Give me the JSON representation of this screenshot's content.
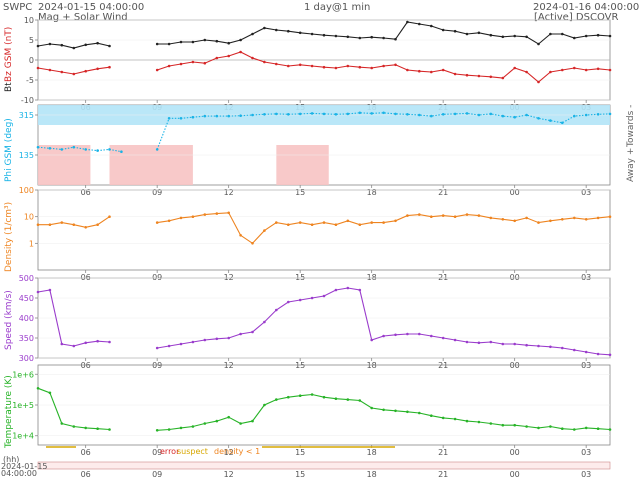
{
  "header": {
    "org": "SWPC",
    "subtitle": "Mag + Solar Wind",
    "start_time": "2024-01-15 04:00:00",
    "center_label": "1 day@1 min",
    "end_time": "2024-01-16 04:00:00",
    "source": "[Active] DSCOVR"
  },
  "legend_flags": {
    "error": "error",
    "suspect": "suspect",
    "density": "density < 1"
  },
  "bottom_axis": {
    "hh_label": "(hh)",
    "start_date": "2024-01-15",
    "start_clock": "04:00:00",
    "hour_ticks": [
      "06",
      "09",
      "12",
      "15",
      "18",
      "21",
      "00",
      "03"
    ]
  },
  "colors": {
    "bt": "#222222",
    "bz": "#d62728",
    "phi": "#19b3e6",
    "phi_towards": "#b3e4f7",
    "phi_away": "#f7c3c3",
    "density": "#ee8420",
    "speed": "#9a3ccc",
    "temperature": "#27b327",
    "flag_bar": "#d7a700",
    "axis": "#888888"
  },
  "chart_data": [
    {
      "type": "line",
      "name": "Magnetic field",
      "ylabels": [
        "Bt",
        "Bz GSM (nT)"
      ],
      "ylim": [
        -10,
        10
      ],
      "yticks": [
        -10,
        -5,
        0,
        5,
        10
      ],
      "xlim": [
        0,
        24
      ],
      "series": [
        {
          "name": "Bt",
          "x": [
            0,
            0.5,
            1,
            1.5,
            2,
            2.5,
            3,
            3.5,
            4,
            4.5,
            5,
            5.5,
            6,
            6.5,
            7,
            7.5,
            8,
            8.5,
            9,
            9.5,
            10,
            10.5,
            11,
            11.5,
            12,
            12.5,
            13,
            13.5,
            14,
            14.5,
            15,
            15.5,
            16,
            16.5,
            17,
            17.5,
            18,
            18.5,
            19,
            19.5,
            20,
            20.5,
            21,
            21.5,
            22,
            22.5,
            23,
            23.5,
            24
          ],
          "y": [
            3.5,
            4,
            3.7,
            3,
            3.8,
            4.2,
            3.5,
            null,
            null,
            null,
            4,
            4,
            4.5,
            4.5,
            5,
            4.7,
            4.2,
            5,
            6.5,
            8,
            7.5,
            7.2,
            6.8,
            6.5,
            6.2,
            6,
            5.8,
            5.5,
            5.7,
            5.5,
            5.2,
            9.5,
            9.0,
            8.5,
            7.5,
            7.2,
            6.5,
            6.8,
            6.2,
            5.8,
            6.0,
            5.8,
            4.0,
            6.5,
            6.5,
            5.5,
            6.0,
            6.2,
            6.0
          ]
        },
        {
          "name": "Bz",
          "x": [
            0,
            0.5,
            1,
            1.5,
            2,
            2.5,
            3,
            3.5,
            4,
            4.5,
            5,
            5.5,
            6,
            6.5,
            7,
            7.5,
            8,
            8.5,
            9,
            9.5,
            10,
            10.5,
            11,
            11.5,
            12,
            12.5,
            13,
            13.5,
            14,
            14.5,
            15,
            15.5,
            16,
            16.5,
            17,
            17.5,
            18,
            18.5,
            19,
            19.5,
            20,
            20.5,
            21,
            21.5,
            22,
            22.5,
            23,
            23.5,
            24
          ],
          "y": [
            -2,
            -2.5,
            -3,
            -3.5,
            -2.8,
            -2.2,
            -1.8,
            null,
            null,
            null,
            -2.5,
            -1.5,
            -1,
            -0.5,
            -0.8,
            0.5,
            1,
            2,
            0.5,
            -0.5,
            -1,
            -1.5,
            -1.2,
            -1.5,
            -1.8,
            -2,
            -1.5,
            -1.8,
            -2,
            -1.5,
            -1.2,
            -2.5,
            -2.8,
            -3,
            -2.5,
            -3.5,
            -3.8,
            -4,
            -4.2,
            -4.5,
            -2,
            -3,
            -5.5,
            -3,
            -2.5,
            -2,
            -2.5,
            -2.2,
            -2.5
          ]
        }
      ]
    },
    {
      "type": "scatter",
      "name": "Phi",
      "ylabel": "Phi GSM (deg)",
      "ylim": [
        0,
        360
      ],
      "yticks": [
        135,
        315
      ],
      "side_labels": [
        "Away +",
        "Towards -"
      ],
      "xlim": [
        0,
        24
      ],
      "series": [
        {
          "name": "Phi",
          "x": [
            0,
            0.5,
            1,
            1.5,
            2,
            2.5,
            3,
            3.5,
            4,
            4.5,
            5,
            5.5,
            6,
            6.5,
            7,
            7.5,
            8,
            8.5,
            9,
            9.5,
            10,
            10.5,
            11,
            11.5,
            12,
            12.5,
            13,
            13.5,
            14,
            14.5,
            15,
            15.5,
            16,
            16.5,
            17,
            17.5,
            18,
            18.5,
            19,
            19.5,
            20,
            20.5,
            21,
            21.5,
            22,
            22.5,
            23,
            23.5,
            24
          ],
          "y": [
            170,
            165,
            160,
            170,
            160,
            155,
            160,
            150,
            null,
            null,
            160,
            300,
            300,
            305,
            310,
            310,
            310,
            312,
            315,
            318,
            320,
            318,
            320,
            322,
            320,
            318,
            320,
            325,
            322,
            325,
            320,
            318,
            315,
            310,
            318,
            320,
            322,
            315,
            320,
            310,
            305,
            315,
            300,
            290,
            280,
            310,
            315,
            318,
            320
          ]
        }
      ]
    },
    {
      "type": "line",
      "name": "Density",
      "ylabel": "Density (1/cm³)",
      "yscale": "log",
      "ylim": [
        0.1,
        100
      ],
      "yticks": [
        1,
        10,
        100
      ],
      "xlim": [
        0,
        24
      ],
      "series": [
        {
          "name": "Density",
          "x": [
            0,
            0.5,
            1,
            1.5,
            2,
            2.5,
            3,
            3.5,
            4,
            4.5,
            5,
            5.5,
            6,
            6.5,
            7,
            7.5,
            8,
            8.5,
            9,
            9.5,
            10,
            10.5,
            11,
            11.5,
            12,
            12.5,
            13,
            13.5,
            14,
            14.5,
            15,
            15.5,
            16,
            16.5,
            17,
            17.5,
            18,
            18.5,
            19,
            19.5,
            20,
            20.5,
            21,
            21.5,
            22,
            22.5,
            23,
            23.5,
            24
          ],
          "y": [
            5,
            5,
            6,
            5,
            4,
            5,
            10,
            null,
            null,
            null,
            6,
            7,
            9,
            10,
            12,
            13,
            14,
            2,
            1,
            3,
            6,
            5,
            6,
            5,
            6,
            5,
            7,
            5,
            6,
            6,
            7,
            11,
            12,
            10,
            11,
            10,
            12,
            11,
            9,
            8,
            7,
            9,
            6,
            7,
            8,
            9,
            8,
            9,
            10
          ]
        }
      ]
    },
    {
      "type": "line",
      "name": "Speed",
      "ylabel": "Speed (km/s)",
      "ylim": [
        300,
        500
      ],
      "yticks": [
        300,
        350,
        400,
        450,
        500
      ],
      "xlim": [
        0,
        24
      ],
      "series": [
        {
          "name": "Speed",
          "x": [
            0,
            0.5,
            1,
            1.5,
            2,
            2.5,
            3,
            3.5,
            4,
            4.5,
            5,
            5.5,
            6,
            6.5,
            7,
            7.5,
            8,
            8.5,
            9,
            9.5,
            10,
            10.5,
            11,
            11.5,
            12,
            12.5,
            13,
            13.5,
            14,
            14.5,
            15,
            15.5,
            16,
            16.5,
            17,
            17.5,
            18,
            18.5,
            19,
            19.5,
            20,
            20.5,
            21,
            21.5,
            22,
            22.5,
            23,
            23.5,
            24
          ],
          "y": [
            465,
            470,
            335,
            330,
            338,
            342,
            340,
            null,
            null,
            null,
            325,
            330,
            335,
            340,
            345,
            348,
            350,
            360,
            365,
            390,
            420,
            440,
            445,
            450,
            455,
            470,
            475,
            470,
            345,
            355,
            358,
            360,
            360,
            355,
            350,
            345,
            340,
            338,
            340,
            335,
            335,
            332,
            330,
            328,
            325,
            320,
            315,
            310,
            308
          ]
        }
      ]
    },
    {
      "type": "line",
      "name": "Temperature",
      "ylabel": "Temperature (K)",
      "yscale": "log",
      "ylim": [
        5000,
        2000000
      ],
      "yticks": [
        "1e+4",
        "1e+5",
        "1e+6"
      ],
      "xlim": [
        0,
        24
      ],
      "series": [
        {
          "name": "Temperature",
          "x": [
            0,
            0.5,
            1,
            1.5,
            2,
            2.5,
            3,
            3.5,
            4,
            4.5,
            5,
            5.5,
            6,
            6.5,
            7,
            7.5,
            8,
            8.5,
            9,
            9.5,
            10,
            10.5,
            11,
            11.5,
            12,
            12.5,
            13,
            13.5,
            14,
            14.5,
            15,
            15.5,
            16,
            16.5,
            17,
            17.5,
            18,
            18.5,
            19,
            19.5,
            20,
            20.5,
            21,
            21.5,
            22,
            22.5,
            23,
            23.5,
            24
          ],
          "y": [
            350000,
            250000,
            25000,
            20000,
            18000,
            17000,
            16000,
            null,
            null,
            null,
            15000,
            16000,
            18000,
            20000,
            25000,
            30000,
            40000,
            25000,
            30000,
            100000,
            150000,
            180000,
            200000,
            220000,
            180000,
            160000,
            150000,
            140000,
            80000,
            70000,
            65000,
            60000,
            55000,
            45000,
            38000,
            35000,
            30000,
            28000,
            25000,
            22000,
            22000,
            20000,
            18000,
            20000,
            17000,
            16000,
            18000,
            17000,
            16000
          ]
        }
      ]
    }
  ]
}
